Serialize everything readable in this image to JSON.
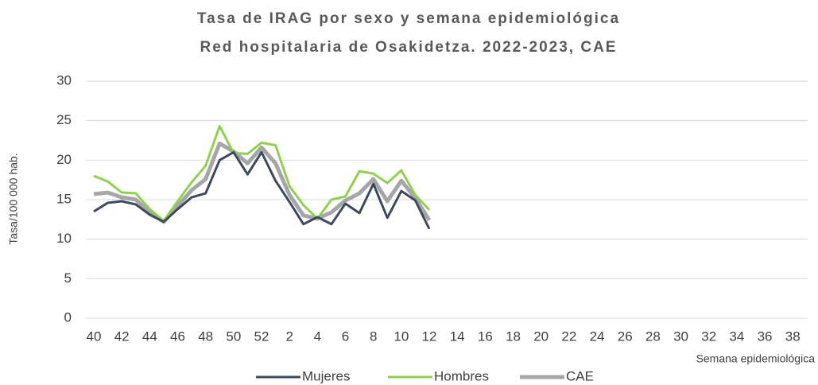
{
  "chart_data": {
    "type": "line",
    "title": "Tasa de IRAG por sexo y semana epidemiológica",
    "subtitle": "Red hospitalaria de Osakidetza. 2022-2023, CAE",
    "y_label": "Tasa/100 000 hab.",
    "x_label": "Semana epidemiológica",
    "categories": [
      40,
      null,
      42,
      null,
      44,
      null,
      46,
      null,
      48,
      null,
      50,
      null,
      52,
      null,
      2,
      null,
      4,
      null,
      6,
      null,
      8,
      null,
      10,
      null,
      12,
      null,
      14,
      null,
      16,
      null,
      18,
      null,
      20,
      null,
      22,
      null,
      24,
      null,
      26,
      null,
      28,
      null,
      30,
      null,
      32,
      null,
      34,
      null,
      36,
      null,
      38,
      null
    ],
    "ylim": [
      0,
      30
    ],
    "yticks": [
      0,
      5,
      10,
      15,
      20,
      25,
      30
    ],
    "grid": true,
    "series": [
      {
        "name": "Mujeres",
        "color": "#3b4a5e",
        "values": [
          13.5,
          14.6,
          14.8,
          14.4,
          13.1,
          12.2,
          13.8,
          15.3,
          15.8,
          20.0,
          21.0,
          18.2,
          21.0,
          17.4,
          14.7,
          11.9,
          12.8,
          11.9,
          14.5,
          13.3,
          17.0,
          12.7,
          16.1,
          14.9,
          11.3,
          null,
          null,
          null,
          null,
          null,
          null,
          null,
          null,
          null,
          null,
          null,
          null,
          null,
          null,
          null,
          null,
          null,
          null,
          null,
          null,
          null,
          null,
          null,
          null,
          null,
          null,
          null
        ]
      },
      {
        "name": "Hombres",
        "color": "#8fd14f",
        "values": [
          18.0,
          17.3,
          15.9,
          15.8,
          13.8,
          12.3,
          14.8,
          17.2,
          19.3,
          24.3,
          20.9,
          20.8,
          22.2,
          21.9,
          16.7,
          14.3,
          12.6,
          15.0,
          15.4,
          18.6,
          18.3,
          17.1,
          18.7,
          15.6,
          13.7,
          null,
          null,
          null,
          null,
          null,
          null,
          null,
          null,
          null,
          null,
          null,
          null,
          null,
          null,
          null,
          null,
          null,
          null,
          null,
          null,
          null,
          null,
          null,
          null,
          null,
          null,
          null
        ]
      },
      {
        "name": "CAE",
        "color": "#a6a6a6",
        "values": [
          15.7,
          15.9,
          15.3,
          15.0,
          13.4,
          12.2,
          14.2,
          16.2,
          17.6,
          22.1,
          21.1,
          19.6,
          21.6,
          19.6,
          15.6,
          13.0,
          12.6,
          13.4,
          14.9,
          15.8,
          17.6,
          14.8,
          17.4,
          15.2,
          12.4,
          null,
          null,
          null,
          null,
          null,
          null,
          null,
          null,
          null,
          null,
          null,
          null,
          null,
          null,
          null,
          null,
          null,
          null,
          null,
          null,
          null,
          null,
          null,
          null,
          null,
          null,
          null
        ]
      }
    ]
  }
}
